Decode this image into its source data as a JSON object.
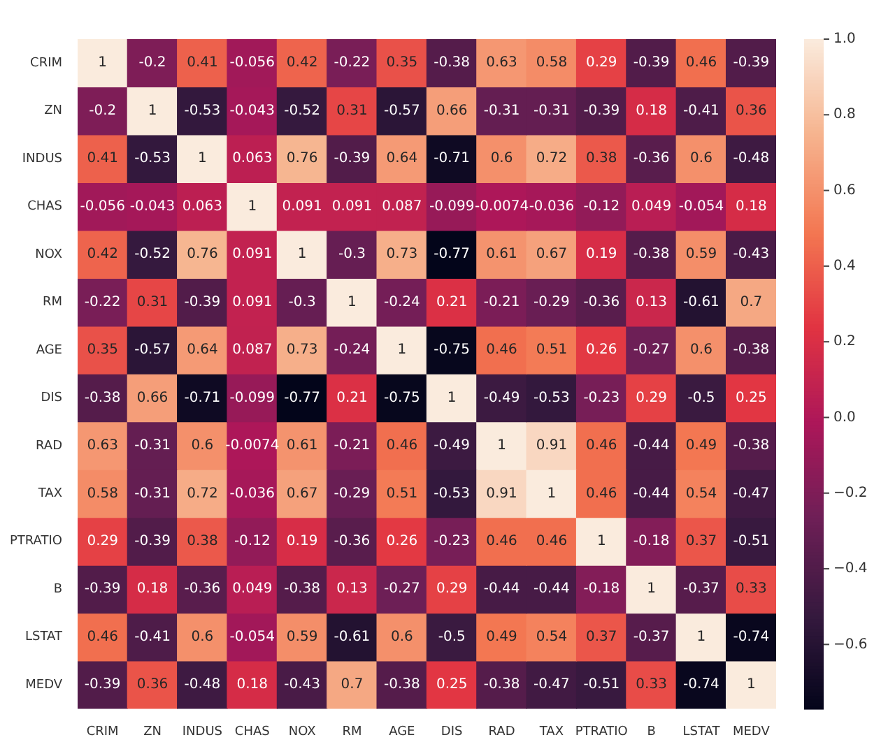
{
  "chart_data": {
    "type": "heatmap",
    "categories": [
      "CRIM",
      "ZN",
      "INDUS",
      "CHAS",
      "NOX",
      "RM",
      "AGE",
      "DIS",
      "RAD",
      "TAX",
      "PTRATIO",
      "B",
      "LSTAT",
      "MEDV"
    ],
    "y_categories": [
      "CRIM",
      "ZN",
      "INDUS",
      "CHAS",
      "NOX",
      "RM",
      "AGE",
      "DIS",
      "RAD",
      "TAX",
      "PTRATIO",
      "B",
      "LSTAT",
      "MEDV"
    ],
    "cells": [
      [
        1,
        -0.2,
        0.41,
        -0.056,
        0.42,
        -0.22,
        0.35,
        -0.38,
        0.63,
        0.58,
        0.29,
        -0.39,
        0.46,
        -0.39
      ],
      [
        -0.2,
        1,
        -0.53,
        -0.043,
        -0.52,
        0.31,
        -0.57,
        0.66,
        -0.31,
        -0.31,
        -0.39,
        0.18,
        -0.41,
        0.36
      ],
      [
        0.41,
        -0.53,
        1,
        0.063,
        0.76,
        -0.39,
        0.64,
        -0.71,
        0.6,
        0.72,
        0.38,
        -0.36,
        0.6,
        -0.48
      ],
      [
        -0.056,
        -0.043,
        0.063,
        1,
        0.091,
        0.091,
        0.087,
        -0.099,
        -0.0074,
        -0.036,
        -0.12,
        0.049,
        -0.054,
        0.18
      ],
      [
        0.42,
        -0.52,
        0.76,
        0.091,
        1,
        -0.3,
        0.73,
        -0.77,
        0.61,
        0.67,
        0.19,
        -0.38,
        0.59,
        -0.43
      ],
      [
        -0.22,
        0.31,
        -0.39,
        0.091,
        -0.3,
        1,
        -0.24,
        0.21,
        -0.21,
        -0.29,
        -0.36,
        0.13,
        -0.61,
        0.7
      ],
      [
        0.35,
        -0.57,
        0.64,
        0.087,
        0.73,
        -0.24,
        1,
        -0.75,
        0.46,
        0.51,
        0.26,
        -0.27,
        0.6,
        -0.38
      ],
      [
        -0.38,
        0.66,
        -0.71,
        -0.099,
        -0.77,
        0.21,
        -0.75,
        1,
        -0.49,
        -0.53,
        -0.23,
        0.29,
        -0.5,
        0.25
      ],
      [
        0.63,
        -0.31,
        0.6,
        -0.0074,
        0.61,
        -0.21,
        0.46,
        -0.49,
        1,
        0.91,
        0.46,
        -0.44,
        0.49,
        -0.38
      ],
      [
        0.58,
        -0.31,
        0.72,
        -0.036,
        0.67,
        -0.29,
        0.51,
        -0.53,
        0.91,
        1,
        0.46,
        -0.44,
        0.54,
        -0.47
      ],
      [
        0.29,
        -0.39,
        0.38,
        -0.12,
        0.19,
        -0.36,
        0.26,
        -0.23,
        0.46,
        0.46,
        1,
        -0.18,
        0.37,
        -0.51
      ],
      [
        -0.39,
        0.18,
        -0.36,
        0.049,
        -0.38,
        0.13,
        -0.27,
        0.29,
        -0.44,
        -0.44,
        -0.18,
        1,
        -0.37,
        0.33
      ],
      [
        0.46,
        -0.41,
        0.6,
        -0.054,
        0.59,
        -0.61,
        0.6,
        -0.5,
        0.49,
        0.54,
        0.37,
        -0.37,
        1,
        -0.74
      ],
      [
        -0.39,
        0.36,
        -0.48,
        0.18,
        -0.43,
        0.7,
        -0.38,
        0.25,
        -0.38,
        -0.47,
        -0.51,
        0.33,
        -0.74,
        1
      ]
    ],
    "data_labels": true,
    "clim": [
      -0.77,
      1
    ],
    "cticks": [
      {
        "value": -0.6,
        "label": "−0.6"
      },
      {
        "value": -0.4,
        "label": "−0.4"
      },
      {
        "value": -0.2,
        "label": "−0.2"
      },
      {
        "value": 0,
        "label": "0.0"
      },
      {
        "value": 0.2,
        "label": "0.2"
      },
      {
        "value": 0.4,
        "label": "0.4"
      },
      {
        "value": 0.6,
        "label": "0.6"
      },
      {
        "value": 0.8,
        "label": "0.8"
      },
      {
        "value": 1,
        "label": "1.0"
      }
    ]
  }
}
